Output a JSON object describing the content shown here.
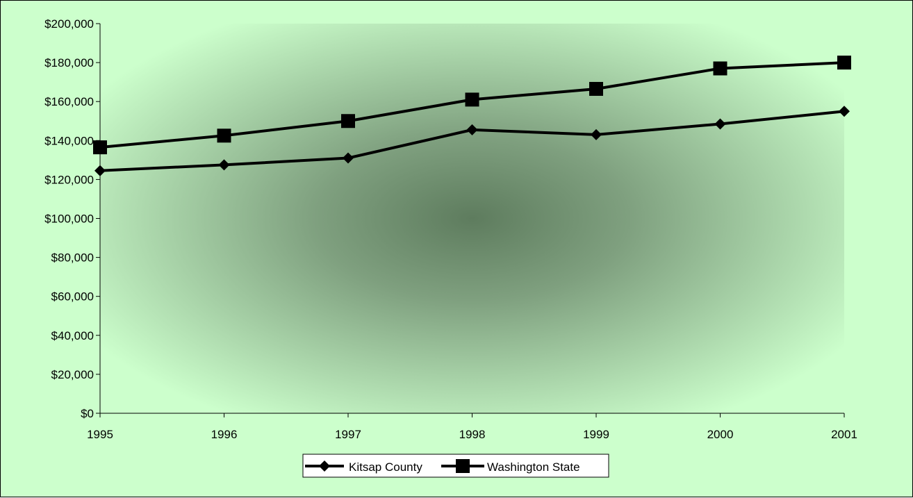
{
  "chart_data": {
    "type": "line",
    "title": "",
    "xlabel": "",
    "ylabel": "",
    "categories": [
      "1995",
      "1996",
      "1997",
      "1998",
      "1999",
      "2000",
      "2001"
    ],
    "ylim": [
      0,
      200000
    ],
    "y_ticks": [
      "$0",
      "$20,000",
      "$40,000",
      "$60,000",
      "$80,000",
      "$100,000",
      "$120,000",
      "$140,000",
      "$160,000",
      "$180,000",
      "$200,000"
    ],
    "y_tick_values": [
      0,
      20000,
      40000,
      60000,
      80000,
      100000,
      120000,
      140000,
      160000,
      180000,
      200000
    ],
    "grid": false,
    "legend_position": "bottom",
    "series": [
      {
        "name": "Kitsap County",
        "marker": "diamond",
        "color": "#000000",
        "values": [
          124500,
          127500,
          131000,
          145500,
          143000,
          148500,
          155000
        ]
      },
      {
        "name": "Washington State",
        "marker": "square",
        "color": "#000000",
        "values": [
          136500,
          142500,
          150000,
          161000,
          166500,
          177000,
          180000
        ]
      }
    ],
    "colors": {
      "background": "#ccffcc",
      "plot_center": "#5e7c5e",
      "plot_edge": "#ccffcc"
    }
  }
}
